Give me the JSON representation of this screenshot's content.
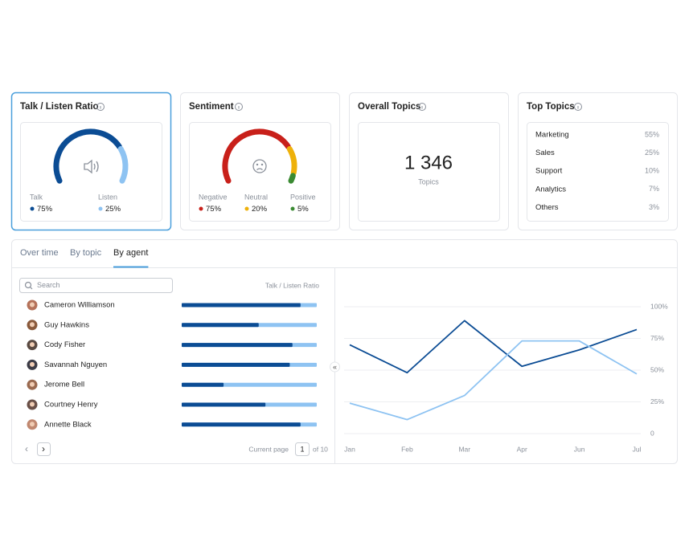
{
  "cards": [
    {
      "title": "Talk / Listen Ratio",
      "segments": [
        {
          "name": "Talk",
          "color": "#0b4c94",
          "value": 75,
          "value_label": "75%"
        },
        {
          "name": "Listen",
          "color": "#8ec3f2",
          "value": 25,
          "value_label": "25%"
        }
      ]
    },
    {
      "title": "Sentiment",
      "segments": [
        {
          "name": "Negative",
          "color": "#c8201a",
          "value": 75,
          "value_label": "75%"
        },
        {
          "name": "Neutral",
          "color": "#eeb10a",
          "value": 20,
          "value_label": "20%"
        },
        {
          "name": "Positive",
          "color": "#3a8a32",
          "value": 5,
          "value_label": "5%"
        }
      ]
    },
    {
      "title": "Overall Topics",
      "value": "1 346",
      "label": "Topics"
    },
    {
      "title": "Top Topics",
      "rows": [
        {
          "name": "Marketing",
          "value": "55%"
        },
        {
          "name": "Sales",
          "value": "25%"
        },
        {
          "name": "Support",
          "value": "10%"
        },
        {
          "name": "Analytics",
          "value": "7%"
        },
        {
          "name": "Others",
          "value": "3%"
        }
      ]
    }
  ],
  "tabs": {
    "items": [
      "Over time",
      "By topic",
      "By agent"
    ],
    "active": 2
  },
  "agents": {
    "search_placeholder": "Search",
    "column_title": "Talk / Listen Ratio",
    "talk_color": "#0b4c94",
    "listen_color": "#8ec3f2",
    "rows": [
      {
        "name": "Cameron Williamson",
        "talk": 88
      },
      {
        "name": "Guy Hawkins",
        "talk": 57
      },
      {
        "name": "Cody Fisher",
        "talk": 82
      },
      {
        "name": "Savannah Nguyen",
        "talk": 80
      },
      {
        "name": "Jerome Bell",
        "talk": 31
      },
      {
        "name": "Courtney Henry",
        "talk": 62
      },
      {
        "name": "Annette Black",
        "talk": 88
      }
    ],
    "pagination": {
      "label": "Current page",
      "page": "1",
      "total": "of 10"
    }
  },
  "chart_data": {
    "type": "line",
    "categories": [
      "Jan",
      "Feb",
      "Mar",
      "Apr",
      "Jun",
      "Jul"
    ],
    "series": [
      {
        "color": "#0b4c94",
        "values": [
          70,
          48,
          89,
          53,
          66,
          82
        ]
      },
      {
        "color": "#8ec3f2",
        "values": [
          24,
          11,
          30,
          73,
          73,
          47
        ]
      }
    ],
    "ylim": [
      0,
      100
    ],
    "yticks": [
      {
        "value": 0,
        "label": "0"
      },
      {
        "value": 25,
        "label": "25%"
      },
      {
        "value": 50,
        "label": "50%"
      },
      {
        "value": 75,
        "label": "75%"
      },
      {
        "value": 100,
        "label": "100%"
      }
    ],
    "grid": true
  }
}
